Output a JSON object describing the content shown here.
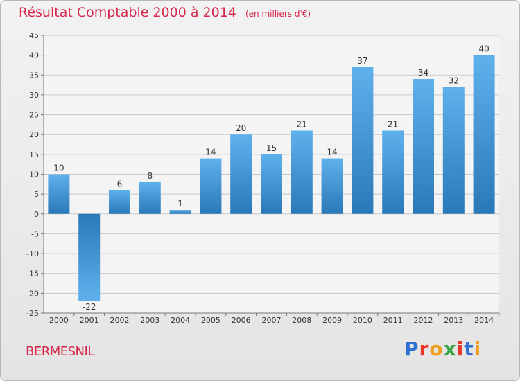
{
  "title": "Résultat Comptable 2000 à 2014",
  "unit": "(en milliers d'€)",
  "commune": "BERMESNIL",
  "logo": [
    "P",
    "r",
    "o",
    "x",
    "i",
    "t",
    "i"
  ],
  "colors": {
    "title": "#d8284c",
    "bar_light": "#5fb1ec",
    "bar_dark": "#2a78b8",
    "logo": [
      "#2e6fd0",
      "#e8352a",
      "#f0a01e",
      "#3aa542",
      "#e8352a",
      "#2e6fd0",
      "#f0a01e"
    ]
  },
  "chart_data": {
    "type": "bar",
    "title": "Résultat Comptable 2000 à 2014",
    "xlabel": "",
    "ylabel": "",
    "categories": [
      "2000",
      "2001",
      "2002",
      "2003",
      "2004",
      "2005",
      "2006",
      "2007",
      "2008",
      "2009",
      "2010",
      "2011",
      "2012",
      "2013",
      "2014"
    ],
    "values": [
      10,
      -22,
      6,
      8,
      1,
      14,
      20,
      15,
      21,
      14,
      37,
      21,
      34,
      32,
      40
    ],
    "ylim": [
      -25,
      45
    ],
    "yticks": [
      45,
      40,
      35,
      30,
      25,
      20,
      15,
      10,
      5,
      0,
      -5,
      -10,
      -15,
      -20,
      -25
    ],
    "ytick_labels": [
      "45",
      "40",
      "35",
      "30",
      "25",
      "20",
      "15",
      "10",
      "5",
      "0",
      "-5",
      "-10",
      "-15",
      "-20",
      "-25"
    ],
    "grid": true
  }
}
